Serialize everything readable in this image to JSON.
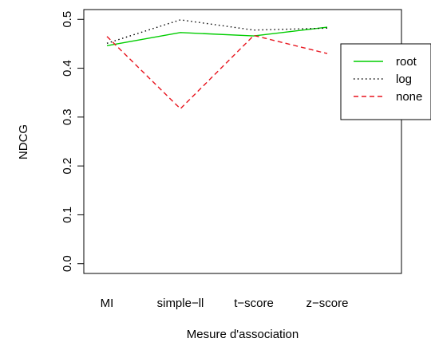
{
  "chart_data": {
    "type": "line",
    "title": "",
    "xlabel": "Mesure d'association",
    "ylabel": "NDCG",
    "categories": [
      "MI",
      "simple−ll",
      "t−score",
      "z−score"
    ],
    "ylim": [
      -0.02,
      0.52
    ],
    "yticks": [
      "0.0",
      "0.1",
      "0.2",
      "0.3",
      "0.4",
      "0.5"
    ],
    "grid": false,
    "legend_position": "right, overlapping plot edge",
    "series": [
      {
        "name": "root",
        "values": [
          0.446,
          0.473,
          0.466,
          0.484
        ],
        "color": "#00CD00",
        "dash": "solid"
      },
      {
        "name": "log",
        "values": [
          0.451,
          0.499,
          0.478,
          0.482
        ],
        "color": "#000000",
        "dash": "dotted"
      },
      {
        "name": "none",
        "values": [
          0.465,
          0.317,
          0.467,
          0.43
        ],
        "color": "#E8141E",
        "dash": "dashed"
      }
    ]
  }
}
